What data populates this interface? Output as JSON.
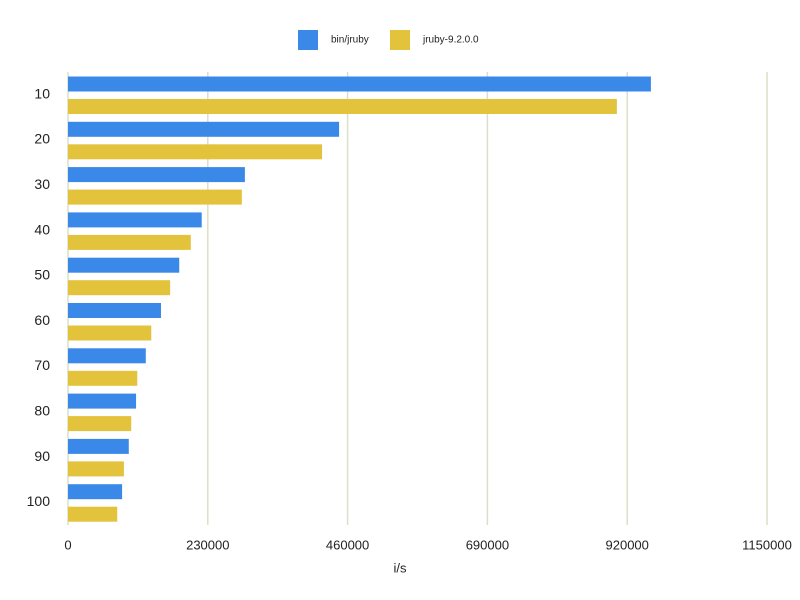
{
  "chart_data": {
    "type": "hbar",
    "categories": [
      "10",
      "20",
      "30",
      "40",
      "50",
      "60",
      "70",
      "80",
      "90",
      "100"
    ],
    "series": [
      {
        "name": "bin/jruby",
        "color": "#3a88e8",
        "values": [
          959000,
          446000,
          291000,
          220000,
          183000,
          153000,
          128000,
          112000,
          100000,
          89000
        ]
      },
      {
        "name": "jruby-9.2.0.0",
        "color": "#e3c33c",
        "values": [
          903000,
          418000,
          286000,
          202000,
          168000,
          137000,
          114000,
          104000,
          92000,
          81000
        ]
      }
    ],
    "x_label": "i/s",
    "xlim": [
      0,
      1150000
    ],
    "xticks": [
      0,
      230000,
      460000,
      690000,
      920000,
      1150000
    ],
    "grid": true,
    "legend": "top"
  }
}
